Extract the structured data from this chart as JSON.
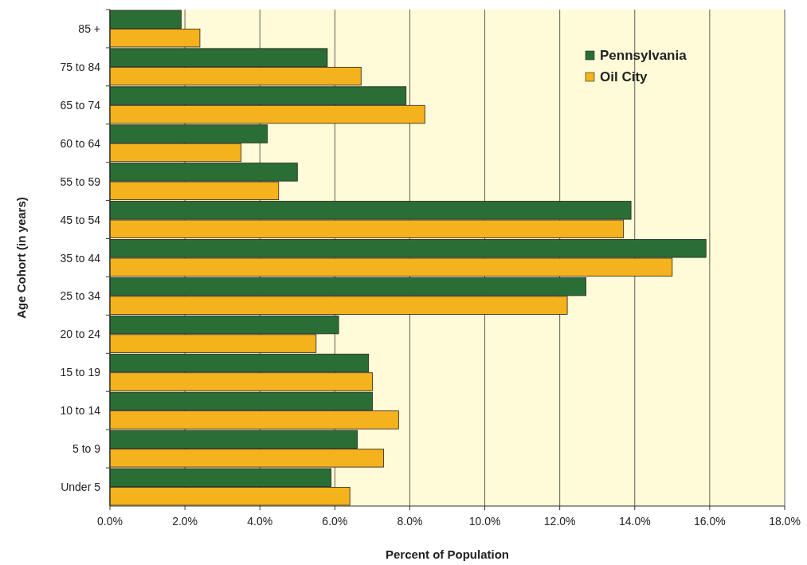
{
  "chart_data": {
    "type": "bar",
    "orientation": "horizontal",
    "xlabel": "Percent of Population",
    "ylabel": "Age Cohort (in years)",
    "categories": [
      "85 +",
      "75 to 84",
      "65 to 74",
      "60 to 64",
      "55 to 59",
      "45 to 54",
      "35 to 44",
      "25 to 34",
      "20 to 24",
      "15 to 19",
      "10 to 14",
      "5 to 9",
      "Under 5"
    ],
    "series": [
      {
        "name": "Pennsylvania",
        "color": "#2a6e35",
        "values": [
          1.9,
          5.8,
          7.9,
          4.2,
          5.0,
          13.9,
          15.9,
          12.7,
          6.1,
          6.9,
          7.0,
          6.6,
          5.9
        ]
      },
      {
        "name": "Oil City",
        "color": "#f4b21c",
        "values": [
          2.4,
          6.7,
          8.4,
          3.5,
          4.5,
          13.7,
          15.0,
          12.2,
          5.5,
          7.0,
          7.7,
          7.3,
          6.4
        ]
      }
    ],
    "xlim": [
      0,
      18
    ],
    "xticks": [
      {
        "value": 0,
        "label": "0.0%"
      },
      {
        "value": 2,
        "label": "2.0%"
      },
      {
        "value": 4,
        "label": "4.0%"
      },
      {
        "value": 6,
        "label": "6.0%"
      },
      {
        "value": 8,
        "label": "8.0%"
      },
      {
        "value": 10,
        "label": "10.0%"
      },
      {
        "value": 12,
        "label": "12.0%"
      },
      {
        "value": 14,
        "label": "14.0%"
      },
      {
        "value": 16,
        "label": "16.0%"
      },
      {
        "value": 18,
        "label": "18.0%"
      }
    ],
    "grid": "x",
    "legend": "top right"
  }
}
